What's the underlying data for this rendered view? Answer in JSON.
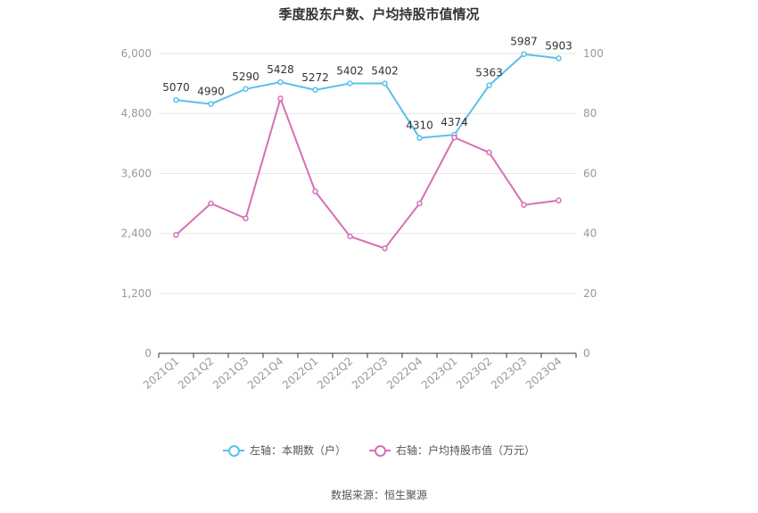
{
  "title": "季度股东户数、户均持股市值情况",
  "source": "数据来源：恒生聚源",
  "colors": {
    "left": "#5bc0eb",
    "right": "#d66fb5",
    "grid": "#e6e6e6",
    "axis": "#333333",
    "tick": "#999999"
  },
  "legend": {
    "left_label": "左轴：本期数（户）",
    "right_label": "右轴：户均持股市值（万元）"
  },
  "chart_data": {
    "type": "line",
    "title": "季度股东户数、户均持股市值情况",
    "categories": [
      "2021Q1",
      "2021Q2",
      "2021Q3",
      "2021Q4",
      "2022Q1",
      "2022Q2",
      "2022Q3",
      "2022Q4",
      "2023Q1",
      "2023Q2",
      "2023Q3",
      "2023Q4"
    ],
    "left_axis": {
      "ylim": [
        0,
        6000
      ],
      "ticks": [
        "0",
        "1,200",
        "2,400",
        "3,600",
        "4,800",
        "6,000"
      ]
    },
    "right_axis": {
      "ylim": [
        0,
        100
      ],
      "ticks": [
        "0",
        "20",
        "40",
        "60",
        "80",
        "100"
      ]
    },
    "series": [
      {
        "name": "左轴：本期数（户）",
        "axis": "left",
        "values": [
          5070,
          4990,
          5290,
          5428,
          5272,
          5402,
          5402,
          4310,
          4374,
          5363,
          5987,
          5903
        ],
        "labels": [
          "5070",
          "4990",
          "5290",
          "5428",
          "5272",
          "5402",
          "5402",
          "4310",
          "4374",
          "5363",
          "5987",
          "5903"
        ]
      },
      {
        "name": "右轴：户均持股市值（万元）",
        "axis": "right",
        "values": [
          39.5,
          50,
          45,
          85,
          54,
          39,
          35,
          50,
          72,
          67,
          49.5,
          51
        ]
      }
    ],
    "grid": true,
    "legend_position": "bottom"
  }
}
